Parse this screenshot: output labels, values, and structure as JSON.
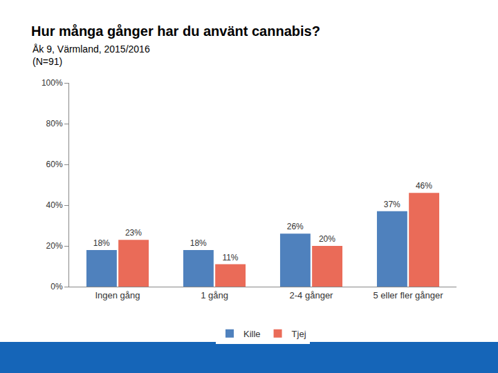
{
  "chart_data": {
    "type": "bar",
    "title": "Hur många gånger har du använt cannabis?",
    "subtitle": [
      "Åk 9, Värmland, 2015/2016",
      "(N=91)"
    ],
    "categories": [
      "Ingen gång",
      "1 gång",
      "2-4 gånger",
      "5 eller fler gånger"
    ],
    "series": [
      {
        "name": "Kille",
        "color": "#4f81bd",
        "values": [
          18,
          18,
          26,
          37
        ],
        "value_labels": [
          "18%",
          "18%",
          "26%",
          "37%"
        ]
      },
      {
        "name": "Tjej",
        "color": "#ea6b58",
        "values": [
          23,
          11,
          20,
          46
        ],
        "value_labels": [
          "23%",
          "11%",
          "20%",
          "46%"
        ]
      }
    ],
    "ylim": [
      0,
      100
    ],
    "yticks": [
      {
        "value": 0,
        "label": "0%"
      },
      {
        "value": 20,
        "label": "20%"
      },
      {
        "value": 40,
        "label": "40%"
      },
      {
        "value": 60,
        "label": "60%"
      },
      {
        "value": 80,
        "label": "80%"
      },
      {
        "value": 100,
        "label": "100%"
      }
    ],
    "grid": false,
    "data_labels": true,
    "legend": "bottom"
  }
}
